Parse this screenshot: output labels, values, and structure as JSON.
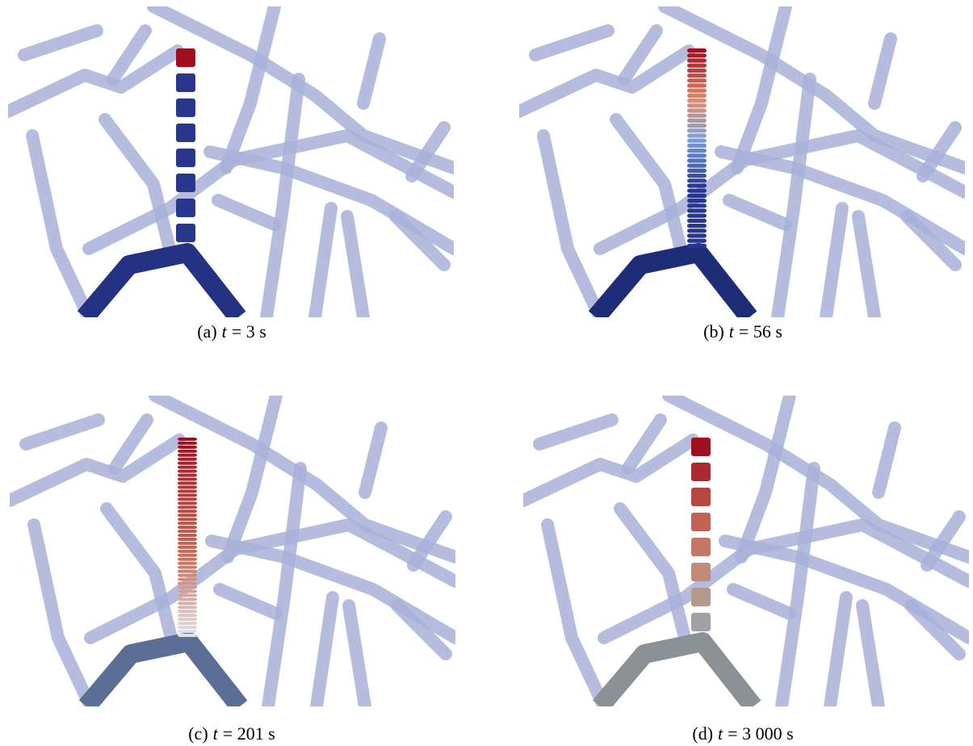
{
  "panels": [
    {
      "tag": "(a)",
      "variable": "t",
      "value": "= 3 s"
    },
    {
      "tag": "(b)",
      "variable": "t",
      "value": "= 56 s"
    },
    {
      "tag": "(c)",
      "variable": "t",
      "value": "= 201 s"
    },
    {
      "tag": "(d)",
      "variable": "t",
      "value": "= 3 000 s"
    }
  ]
}
